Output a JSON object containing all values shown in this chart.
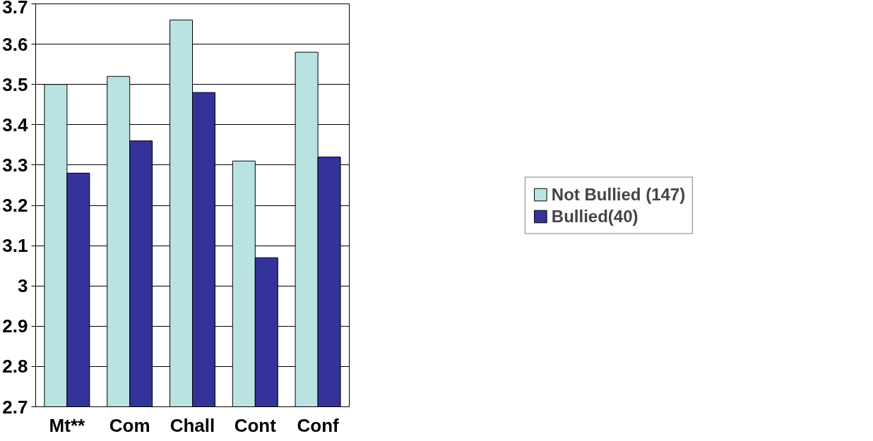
{
  "chart_data": {
    "type": "bar",
    "categories": [
      "Mt**",
      "Com",
      "Chall",
      "Cont",
      "Conf"
    ],
    "series": [
      {
        "name": "Not Bullied (147)",
        "color": "#b9e3e3",
        "values": [
          3.5,
          3.52,
          3.66,
          3.31,
          3.58
        ]
      },
      {
        "name": "Bullied(40)",
        "color": "#333399",
        "values": [
          3.28,
          3.36,
          3.48,
          3.07,
          3.32
        ]
      }
    ],
    "ylim": [
      2.7,
      3.7
    ],
    "yticks": [
      2.7,
      2.8,
      2.9,
      3,
      3.1,
      3.2,
      3.3,
      3.4,
      3.5,
      3.6,
      3.7
    ],
    "grid": "y",
    "legend": "right"
  }
}
